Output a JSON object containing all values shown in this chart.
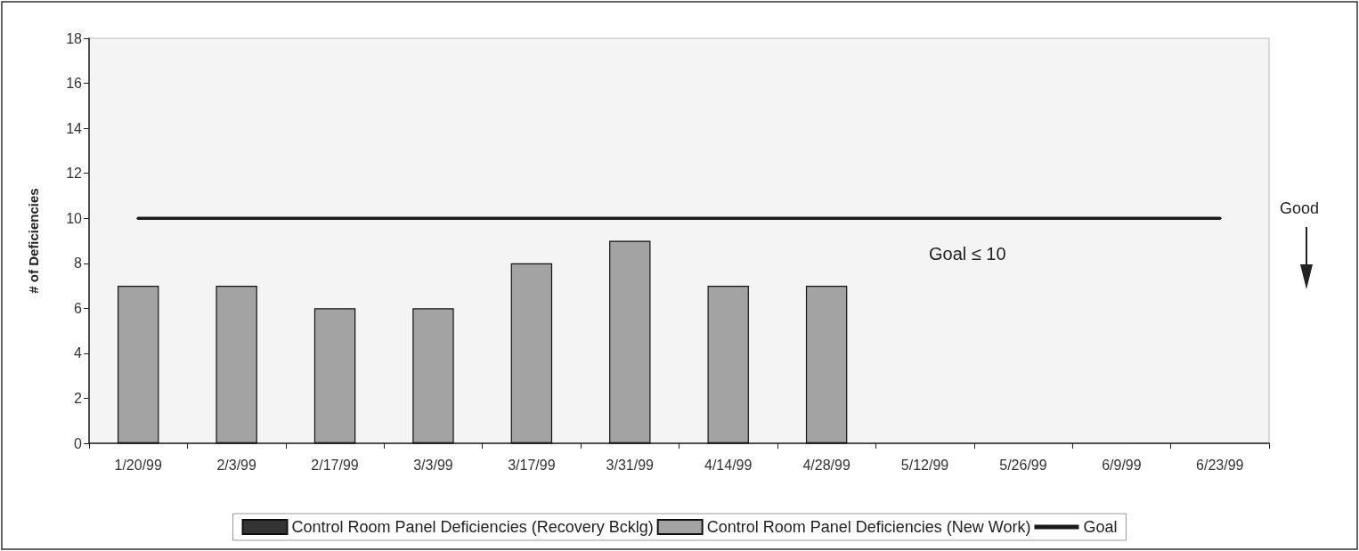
{
  "chart_data": {
    "type": "bar",
    "ylabel": "# of Deficiencies",
    "categories": [
      "1/20/99",
      "2/3/99",
      "2/17/99",
      "3/3/99",
      "3/17/99",
      "3/31/99",
      "4/14/99",
      "4/28/99",
      "5/12/99",
      "5/26/99",
      "6/9/99",
      "6/23/99"
    ],
    "stacked": true,
    "series": [
      {
        "name": "Control Room Panel Deficiencies (Recovery Bcklg)",
        "color": "#333333",
        "values": [
          0,
          0,
          0,
          0,
          0,
          0,
          0,
          0,
          null,
          null,
          null,
          null
        ]
      },
      {
        "name": "Control Room Panel Deficiencies (New Work)",
        "color": "#a3a3a3",
        "values": [
          7,
          7,
          6,
          6,
          8,
          9,
          7,
          7,
          null,
          null,
          null,
          null
        ]
      },
      {
        "name": "Goal",
        "type": "line",
        "color": "#1a1a1a",
        "values": [
          10,
          10,
          10,
          10,
          10,
          10,
          10,
          10,
          10,
          10,
          10,
          10
        ]
      }
    ],
    "ylim": [
      0,
      18
    ],
    "yticks": [
      0,
      2,
      4,
      6,
      8,
      10,
      12,
      14,
      16,
      18
    ],
    "grid": false,
    "legend": "bottom",
    "marker": "none",
    "annotations": [
      "Goal ≤ 10",
      "Good"
    ]
  }
}
